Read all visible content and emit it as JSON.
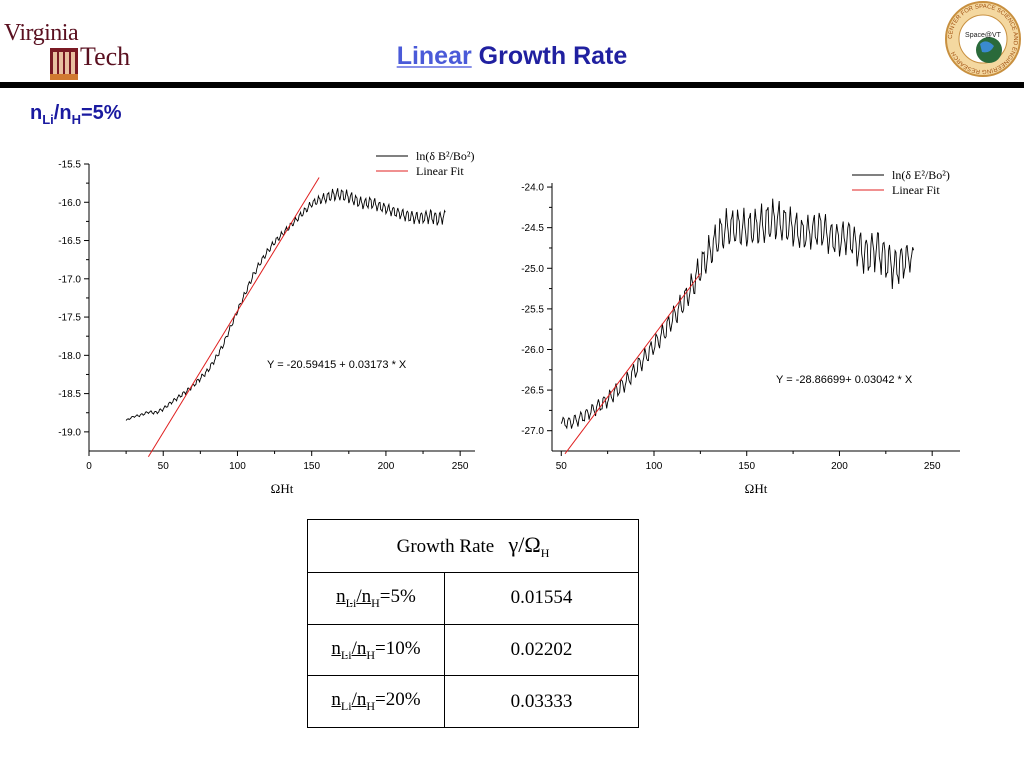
{
  "header": {
    "title_highlight": "Linear",
    "title_rest": " Growth Rate",
    "logo_left_word1": "Virginia",
    "logo_left_word2": "Tech",
    "logo_right_text": "Space@VT",
    "logo_right_ring_text": "CENTER FOR SPACE SCIENCE AND ENGINEERING RESEARCH"
  },
  "subtitle": {
    "n": "n",
    "li": "Li",
    "slash": "/n",
    "h": "H",
    "value": "=5%"
  },
  "colors": {
    "title": "#2020a0",
    "title_highlight": "#4a5ad8",
    "data_line": "#000000",
    "fit_line": "#e02020"
  },
  "chart_data": [
    {
      "type": "line",
      "title": "",
      "xlabel": "ΩHt",
      "ylabel": "",
      "xlim": [
        0,
        260
      ],
      "ylim": [
        -19.25,
        -15.5
      ],
      "xticks": [
        0,
        50,
        100,
        150,
        200,
        250
      ],
      "yticks": [
        -19.0,
        -18.5,
        -18.0,
        -17.5,
        -17.0,
        -16.5,
        -16.0,
        -15.5
      ],
      "xtick_labels": [
        "0",
        "50",
        "100",
        "150",
        "200",
        "250"
      ],
      "ytick_labels": [
        "-19.0",
        "-18.5",
        "-18.0",
        "-17.5",
        "-17.0",
        "-16.5",
        "-16.0",
        "-15.5"
      ],
      "legend": {
        "placement": "top-right",
        "entries": [
          "ln(δ B²/Bo²)",
          "Linear Fit"
        ]
      },
      "annotation": "Y = -20.59415 + 0.03173 * X",
      "series": [
        {
          "name": "ln(δ B²/Bo²)",
          "x": [
            25,
            30,
            35,
            40,
            45,
            50,
            55,
            60,
            65,
            70,
            75,
            80,
            85,
            90,
            95,
            100,
            105,
            110,
            115,
            120,
            125,
            130,
            135,
            140,
            145,
            150,
            155,
            160,
            165,
            170,
            175,
            180,
            185,
            190,
            195,
            200,
            205,
            210,
            215,
            220,
            225,
            230,
            235,
            240
          ],
          "y": [
            -18.85,
            -18.8,
            -18.78,
            -18.74,
            -18.75,
            -18.7,
            -18.62,
            -18.55,
            -18.48,
            -18.4,
            -18.3,
            -18.2,
            -18.05,
            -17.88,
            -17.65,
            -17.42,
            -17.2,
            -16.98,
            -16.8,
            -16.65,
            -16.52,
            -16.42,
            -16.32,
            -16.22,
            -16.12,
            -16.02,
            -15.97,
            -15.94,
            -15.9,
            -15.9,
            -15.93,
            -15.98,
            -16.02,
            -16.0,
            -16.05,
            -16.08,
            -16.12,
            -16.15,
            -16.18,
            -16.2,
            -16.2,
            -16.18,
            -16.22,
            -16.18
          ],
          "oscillation": [
            0.01,
            0.01,
            0.015,
            0.015,
            0.02,
            0.02,
            0.02,
            0.025,
            0.025,
            0.025,
            0.03,
            0.03,
            0.03,
            0.03,
            0.03,
            0.03,
            0.035,
            0.035,
            0.035,
            0.035,
            0.035,
            0.035,
            0.035,
            0.035,
            0.04,
            0.04,
            0.05,
            0.06,
            0.07,
            0.07,
            0.07,
            0.07,
            0.06,
            0.07,
            0.06,
            0.06,
            0.06,
            0.06,
            0.07,
            0.07,
            0.07,
            0.08,
            0.08,
            0.07
          ]
        },
        {
          "name": "Linear Fit",
          "intercept": -20.59415,
          "slope": 0.03173,
          "x_range": [
            40,
            155
          ]
        }
      ]
    },
    {
      "type": "line",
      "title": "",
      "xlabel": "ΩHt",
      "ylabel": "",
      "xlim": [
        45,
        265
      ],
      "ylim": [
        -27.25,
        -23.95
      ],
      "xticks": [
        50,
        100,
        150,
        200,
        250
      ],
      "yticks": [
        -27.0,
        -26.5,
        -26.0,
        -25.5,
        -25.0,
        -24.5,
        -24.0
      ],
      "xtick_labels": [
        "50",
        "100",
        "150",
        "200",
        "250"
      ],
      "ytick_labels": [
        "-27.0",
        "-26.5",
        "-26.0",
        "-25.5",
        "-25.0",
        "-24.5",
        "-24.0"
      ],
      "legend": {
        "placement": "top-right",
        "entries": [
          "ln(δ E²/Bo²)",
          "Linear Fit"
        ]
      },
      "annotation": "Y = -28.86699+ 0.03042 * X",
      "series": [
        {
          "name": "ln(δ E²/Bo²)",
          "x": [
            50,
            55,
            60,
            65,
            70,
            75,
            80,
            85,
            90,
            95,
            100,
            105,
            110,
            115,
            120,
            125,
            130,
            135,
            140,
            145,
            150,
            155,
            160,
            165,
            170,
            175,
            180,
            185,
            190,
            195,
            200,
            205,
            210,
            215,
            220,
            225,
            230,
            235,
            240
          ],
          "y": [
            -26.9,
            -26.9,
            -26.85,
            -26.78,
            -26.7,
            -26.62,
            -26.5,
            -26.4,
            -26.25,
            -26.1,
            -25.95,
            -25.8,
            -25.62,
            -25.45,
            -25.25,
            -25.0,
            -24.8,
            -24.6,
            -24.5,
            -24.5,
            -24.52,
            -24.5,
            -24.45,
            -24.4,
            -24.45,
            -24.5,
            -24.58,
            -24.55,
            -24.5,
            -24.62,
            -24.65,
            -24.6,
            -24.75,
            -24.85,
            -24.75,
            -24.9,
            -25.0,
            -24.9,
            -24.85
          ],
          "oscillation": [
            0.06,
            0.07,
            0.07,
            0.07,
            0.08,
            0.08,
            0.09,
            0.09,
            0.1,
            0.1,
            0.1,
            0.11,
            0.12,
            0.13,
            0.15,
            0.17,
            0.18,
            0.2,
            0.2,
            0.2,
            0.2,
            0.2,
            0.22,
            0.22,
            0.2,
            0.2,
            0.18,
            0.18,
            0.2,
            0.18,
            0.18,
            0.18,
            0.2,
            0.22,
            0.22,
            0.22,
            0.22,
            0.2,
            0.1
          ]
        },
        {
          "name": "Linear Fit",
          "intercept": -28.86699,
          "slope": 0.03042,
          "x_range": [
            52,
            125
          ]
        }
      ]
    }
  ],
  "table": {
    "header_label": "Growth Rate",
    "header_symbol": "γ/Ω",
    "header_symbol_sub": "H",
    "ratio_n": "n",
    "ratio_li": "Li",
    "ratio_slash": "/n",
    "ratio_h": "H",
    "rows": [
      {
        "ratio_value": "=5%",
        "growth": "0.01554"
      },
      {
        "ratio_value": "=10%",
        "growth": "0.02202"
      },
      {
        "ratio_value": "=20%",
        "growth": "0.03333"
      }
    ]
  }
}
